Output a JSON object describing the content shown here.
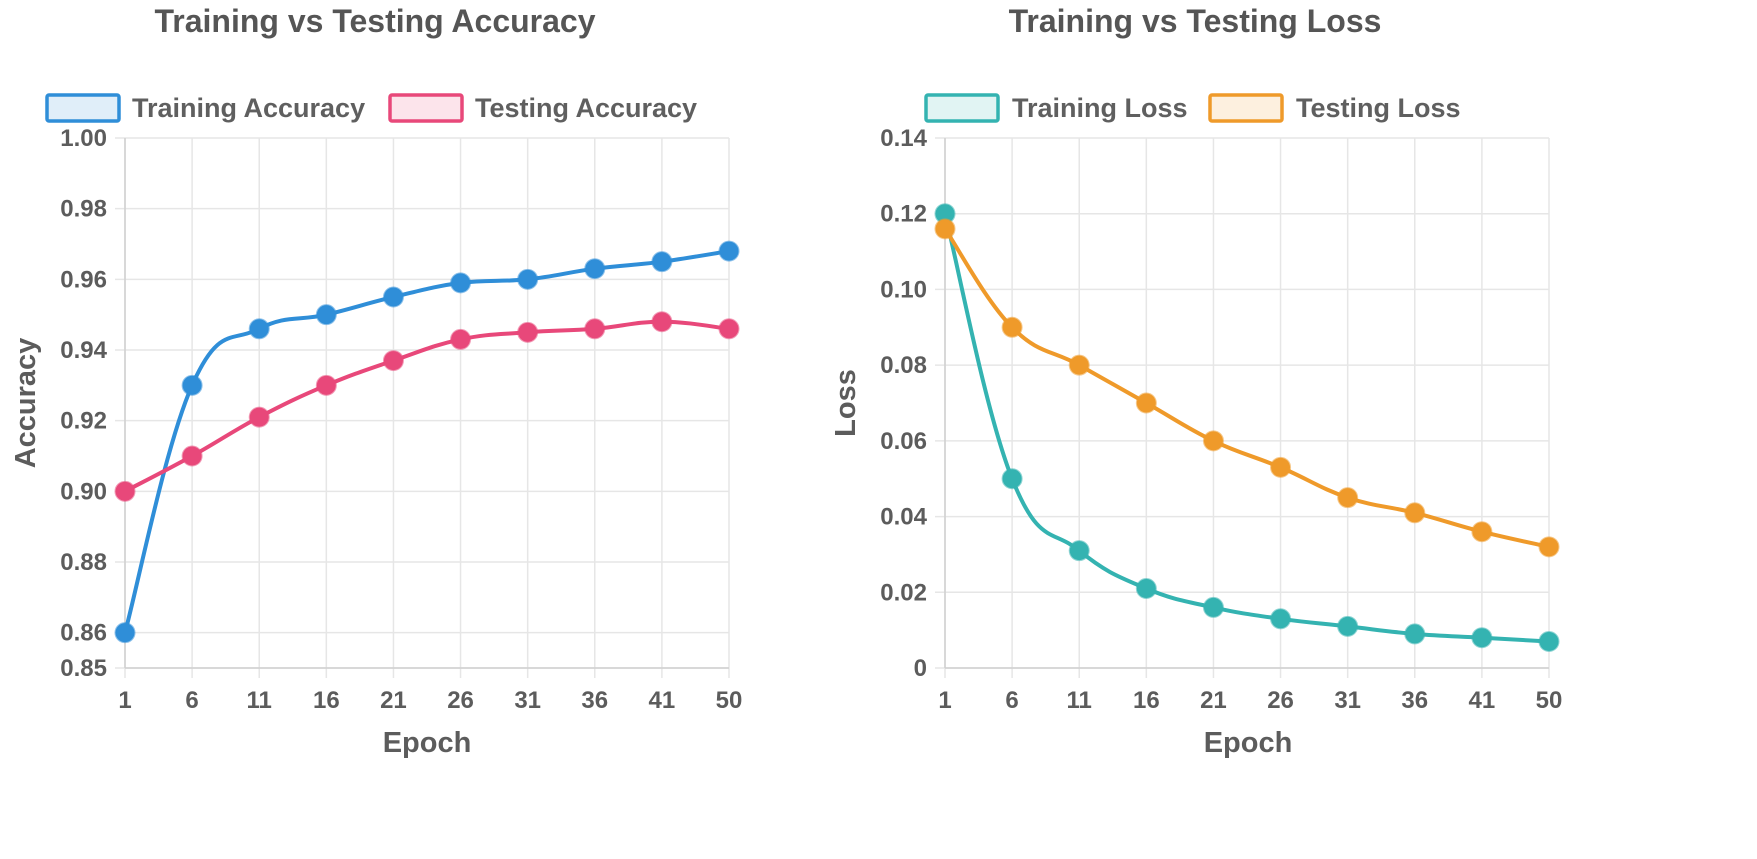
{
  "chart_data": [
    {
      "type": "line",
      "title": "Training vs Testing Accuracy",
      "xlabel": "Epoch",
      "ylabel": "Accuracy",
      "categories": [
        "1",
        "6",
        "11",
        "16",
        "21",
        "26",
        "31",
        "36",
        "41",
        "50"
      ],
      "x": [
        1,
        6,
        11,
        16,
        21,
        26,
        31,
        36,
        41,
        50
      ],
      "ylim": [
        0.85,
        1.0
      ],
      "yticks": [
        "1.00",
        "0.98",
        "0.96",
        "0.94",
        "0.92",
        "0.90",
        "0.88",
        "0.86",
        "0.85"
      ],
      "ytick_values": [
        1.0,
        0.98,
        0.96,
        0.94,
        0.92,
        0.9,
        0.88,
        0.86,
        0.85
      ],
      "legend_position": "top",
      "grid": true,
      "series": [
        {
          "name": "Training Accuracy",
          "color": "#2f8ed8",
          "values": [
            0.86,
            0.93,
            0.946,
            0.95,
            0.955,
            0.959,
            0.96,
            0.963,
            0.965,
            0.968
          ]
        },
        {
          "name": "Testing Accuracy",
          "color": "#e8487a",
          "values": [
            0.9,
            0.91,
            0.921,
            0.93,
            0.937,
            0.943,
            0.945,
            0.946,
            0.948,
            0.946
          ]
        }
      ]
    },
    {
      "type": "line",
      "title": "Training vs Testing Loss",
      "xlabel": "Epoch",
      "ylabel": "Loss",
      "categories": [
        "1",
        "6",
        "11",
        "16",
        "21",
        "26",
        "31",
        "36",
        "41",
        "50"
      ],
      "x": [
        1,
        6,
        11,
        16,
        21,
        26,
        31,
        36,
        41,
        50
      ],
      "ylim": [
        0,
        0.14
      ],
      "yticks": [
        "0.14",
        "0.12",
        "0.10",
        "0.08",
        "0.06",
        "0.04",
        "0.02",
        "0"
      ],
      "ytick_values": [
        0.14,
        0.12,
        0.1,
        0.08,
        0.06,
        0.04,
        0.02,
        0
      ],
      "legend_position": "top",
      "grid": true,
      "series": [
        {
          "name": "Training Loss",
          "color": "#34b3b1",
          "values": [
            0.12,
            0.05,
            0.031,
            0.021,
            0.016,
            0.013,
            0.011,
            0.009,
            0.008,
            0.007
          ]
        },
        {
          "name": "Testing Loss",
          "color": "#ef9a2a",
          "values": [
            0.116,
            0.09,
            0.08,
            0.07,
            0.06,
            0.053,
            0.045,
            0.041,
            0.036,
            0.032
          ]
        }
      ]
    }
  ]
}
